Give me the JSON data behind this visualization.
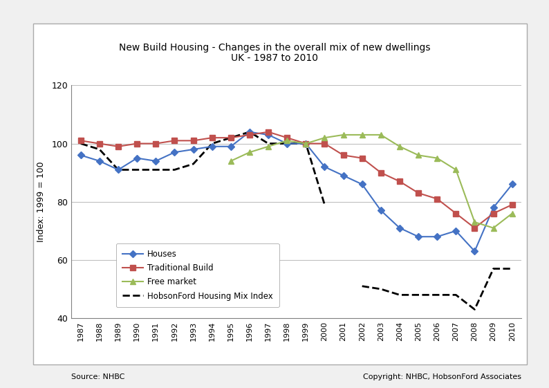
{
  "title_line1": "New Build Housing - Changes in the overall mix of new dwellings",
  "title_line2": "UK - 1987 to 2010",
  "ylabel": "Index: 1999 = 100",
  "source_left": "Source: NHBC",
  "source_right": "Copyright: NHBC, HobsonFord Associates",
  "ylim": [
    40,
    120
  ],
  "yticks": [
    40,
    60,
    80,
    100,
    120
  ],
  "years": [
    1987,
    1988,
    1989,
    1990,
    1991,
    1992,
    1993,
    1994,
    1995,
    1996,
    1997,
    1998,
    1999,
    2000,
    2001,
    2002,
    2003,
    2004,
    2005,
    2006,
    2007,
    2008,
    2009,
    2010
  ],
  "houses": [
    96,
    94,
    91,
    95,
    94,
    97,
    98,
    99,
    99,
    104,
    103,
    100,
    100,
    92,
    89,
    86,
    77,
    71,
    68,
    68,
    70,
    63,
    78,
    86
  ],
  "traditional_build": [
    101,
    100,
    99,
    100,
    100,
    101,
    101,
    102,
    102,
    103,
    104,
    102,
    100,
    100,
    96,
    95,
    90,
    87,
    83,
    81,
    76,
    71,
    76,
    79
  ],
  "free_market": [
    null,
    null,
    null,
    null,
    null,
    null,
    null,
    null,
    94,
    97,
    99,
    101,
    100,
    102,
    103,
    103,
    103,
    99,
    96,
    95,
    91,
    73,
    71,
    76
  ],
  "hf_seg1_years": [
    1987,
    1988,
    1989,
    1990,
    1991,
    1992,
    1993,
    1994,
    1995,
    1996,
    1997,
    1998,
    1999,
    2000
  ],
  "hf_seg1_vals": [
    100,
    98,
    91,
    91,
    91,
    91,
    93,
    100,
    102,
    104,
    100,
    100,
    100,
    79
  ],
  "hf_seg2_years": [
    2002,
    2003,
    2004,
    2005,
    2006,
    2007,
    2008,
    2009,
    2010
  ],
  "hf_seg2_vals": [
    51,
    50,
    48,
    48,
    48,
    48,
    43,
    57,
    57
  ],
  "houses_color": "#4472C4",
  "traditional_color": "#C0504D",
  "freemarket_color": "#9BBB59",
  "hobsonford_color": "#000000"
}
